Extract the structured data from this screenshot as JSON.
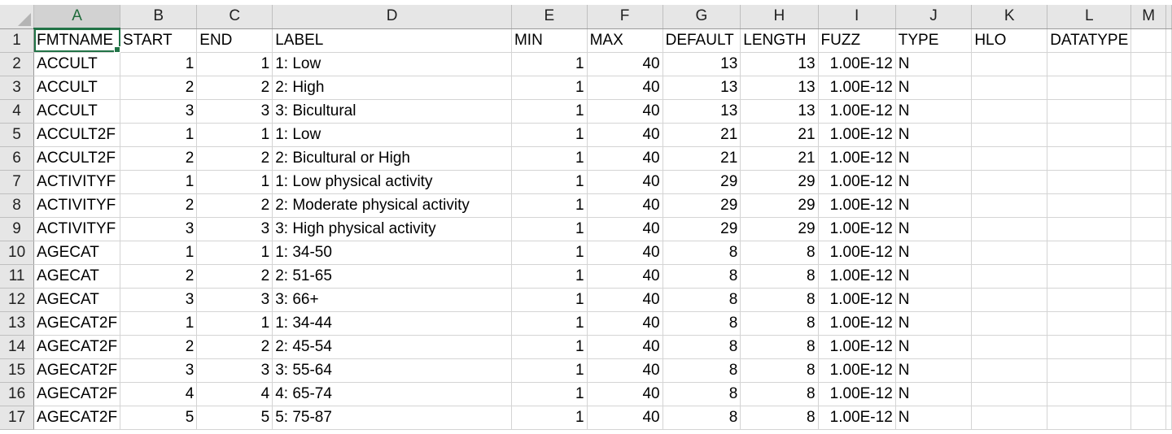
{
  "sheet": {
    "columns": [
      "A",
      "B",
      "C",
      "D",
      "E",
      "F",
      "G",
      "H",
      "I",
      "J",
      "K",
      "L",
      "M"
    ],
    "active_column": "A",
    "selected_cell": "A1",
    "headers": [
      "FMTNAME",
      "START",
      "END",
      "LABEL",
      "MIN",
      "MAX",
      "DEFAULT",
      "LENGTH",
      "FUZZ",
      "TYPE",
      "HLO",
      "DATATYPE",
      ""
    ],
    "rows": [
      {
        "num": "2",
        "cells": [
          "ACCULT",
          "1",
          "1",
          "1: Low",
          "1",
          "40",
          "13",
          "13",
          "1.00E-12",
          "N",
          "",
          "",
          ""
        ]
      },
      {
        "num": "3",
        "cells": [
          "ACCULT",
          "2",
          "2",
          "2: High",
          "1",
          "40",
          "13",
          "13",
          "1.00E-12",
          "N",
          "",
          "",
          ""
        ]
      },
      {
        "num": "4",
        "cells": [
          "ACCULT",
          "3",
          "3",
          "3: Bicultural",
          "1",
          "40",
          "13",
          "13",
          "1.00E-12",
          "N",
          "",
          "",
          ""
        ]
      },
      {
        "num": "5",
        "cells": [
          "ACCULT2F",
          "1",
          "1",
          "1: Low",
          "1",
          "40",
          "21",
          "21",
          "1.00E-12",
          "N",
          "",
          "",
          ""
        ]
      },
      {
        "num": "6",
        "cells": [
          "ACCULT2F",
          "2",
          "2",
          "2: Bicultural or High",
          "1",
          "40",
          "21",
          "21",
          "1.00E-12",
          "N",
          "",
          "",
          ""
        ]
      },
      {
        "num": "7",
        "cells": [
          "ACTIVITYF",
          "1",
          "1",
          "1: Low physical activity",
          "1",
          "40",
          "29",
          "29",
          "1.00E-12",
          "N",
          "",
          "",
          ""
        ]
      },
      {
        "num": "8",
        "cells": [
          "ACTIVITYF",
          "2",
          "2",
          "2: Moderate physical activity",
          "1",
          "40",
          "29",
          "29",
          "1.00E-12",
          "N",
          "",
          "",
          ""
        ]
      },
      {
        "num": "9",
        "cells": [
          "ACTIVITYF",
          "3",
          "3",
          "3: High physical activity",
          "1",
          "40",
          "29",
          "29",
          "1.00E-12",
          "N",
          "",
          "",
          ""
        ]
      },
      {
        "num": "10",
        "cells": [
          "AGECAT",
          "1",
          "1",
          "1: 34-50",
          "1",
          "40",
          "8",
          "8",
          "1.00E-12",
          "N",
          "",
          "",
          ""
        ]
      },
      {
        "num": "11",
        "cells": [
          "AGECAT",
          "2",
          "2",
          "2: 51-65",
          "1",
          "40",
          "8",
          "8",
          "1.00E-12",
          "N",
          "",
          "",
          ""
        ]
      },
      {
        "num": "12",
        "cells": [
          "AGECAT",
          "3",
          "3",
          "3: 66+",
          "1",
          "40",
          "8",
          "8",
          "1.00E-12",
          "N",
          "",
          "",
          ""
        ]
      },
      {
        "num": "13",
        "cells": [
          "AGECAT2F",
          "1",
          "1",
          "1: 34-44",
          "1",
          "40",
          "8",
          "8",
          "1.00E-12",
          "N",
          "",
          "",
          ""
        ]
      },
      {
        "num": "14",
        "cells": [
          "AGECAT2F",
          "2",
          "2",
          "2: 45-54",
          "1",
          "40",
          "8",
          "8",
          "1.00E-12",
          "N",
          "",
          "",
          ""
        ]
      },
      {
        "num": "15",
        "cells": [
          "AGECAT2F",
          "3",
          "3",
          "3: 55-64",
          "1",
          "40",
          "8",
          "8",
          "1.00E-12",
          "N",
          "",
          "",
          ""
        ]
      },
      {
        "num": "16",
        "cells": [
          "AGECAT2F",
          "4",
          "4",
          "4: 65-74",
          "1",
          "40",
          "8",
          "8",
          "1.00E-12",
          "N",
          "",
          "",
          ""
        ]
      },
      {
        "num": "17",
        "cells": [
          "AGECAT2F",
          "5",
          "5",
          "5: 75-87",
          "1",
          "40",
          "8",
          "8",
          "1.00E-12",
          "N",
          "",
          "",
          ""
        ]
      }
    ],
    "numeric_columns": [
      1,
      2,
      4,
      5,
      6,
      7,
      8
    ],
    "colors": {
      "header_bg": "#e6e6e6",
      "gridline": "#d4d4d4",
      "selection": "#217346"
    }
  }
}
